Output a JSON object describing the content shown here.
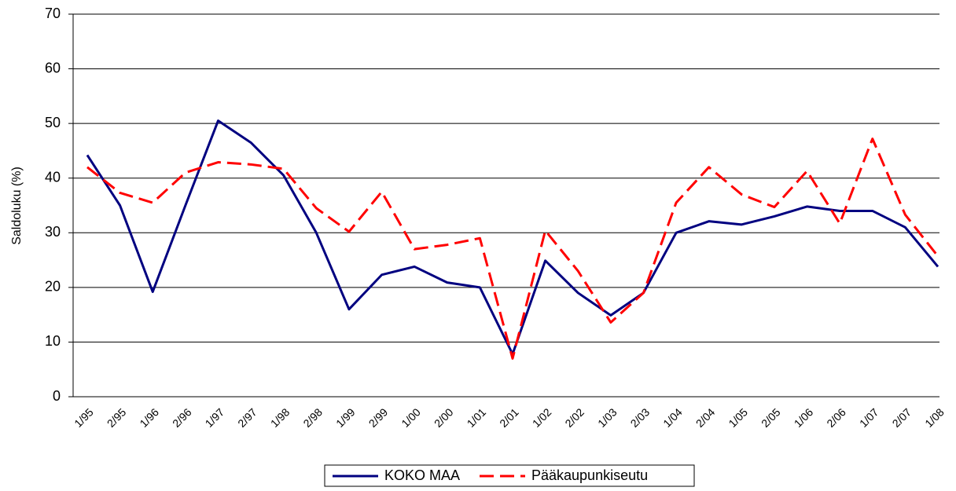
{
  "chart_data": {
    "type": "line",
    "ylabel": "Saldoluku (%)",
    "categories": [
      "1/95",
      "2/95",
      "1/96",
      "2/96",
      "1/97",
      "2/97",
      "1/98",
      "2/98",
      "1/99",
      "2/99",
      "1/00",
      "2/00",
      "1/01",
      "2/01",
      "1/02",
      "2/02",
      "1/03",
      "2/03",
      "1/04",
      "2/04",
      "1/05",
      "2/05",
      "1/06",
      "2/06",
      "1/07",
      "2/07",
      "1/08"
    ],
    "series": [
      {
        "name": "KOKO MAA",
        "color": "#000080",
        "dash": false,
        "values": [
          44.2,
          35,
          19.2,
          35,
          50.5,
          46.5,
          40.5,
          30,
          16,
          22.3,
          23.8,
          20.9,
          20,
          7.8,
          24.9,
          19,
          14.9,
          19,
          30,
          32.1,
          31.5,
          33,
          34.8,
          34,
          34,
          31,
          23.8
        ]
      },
      {
        "name": "Pääkaupunkiseutu",
        "color": "#ff0000",
        "dash": true,
        "values": [
          42,
          37.3,
          35.5,
          41,
          42.9,
          42.5,
          41.7,
          34.5,
          30.2,
          37.5,
          27,
          27.8,
          29,
          7,
          30.4,
          23,
          13.6,
          19,
          35.5,
          42,
          37,
          34.7,
          41.3,
          31.7,
          47.2,
          33.3,
          25.7
        ]
      }
    ],
    "ylim": [
      0,
      70
    ],
    "yticks": [
      0,
      10,
      20,
      30,
      40,
      50,
      60,
      70
    ],
    "grid": true,
    "legend": "bottom"
  }
}
